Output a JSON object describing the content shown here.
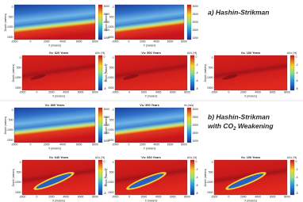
{
  "axis_labels": {
    "y": "Depth (meters)",
    "x": "X (meters)"
  },
  "x_ticks": [
    "-2000",
    "0",
    "2000",
    "4000",
    "6000",
    "8000"
  ],
  "y_ticks": [
    "0",
    "500",
    "1000",
    "1500"
  ],
  "sections": [
    {
      "label": [
        "a) Hashin-Strikman"
      ],
      "rows": [
        {
          "colorbar_ticks": [
            "3000",
            "2500",
            "2000",
            "1500",
            "1000"
          ],
          "panels": [
            {},
            {}
          ]
        },
        {
          "colorbar_ticks": [
            "0",
            "-2",
            "-4",
            "-6",
            "-8"
          ],
          "panels": [
            {
              "title": "Vs: 620 Years",
              "colorbar_label": "ΔVs (%)"
            },
            {
              "title": "Vs: 500 Years",
              "colorbar_label": "ΔVs (%)"
            },
            {
              "title": "Vs: 100 Years",
              "colorbar_label": "ΔVs (%)"
            }
          ]
        }
      ]
    },
    {
      "label": [
        "b) Hashin-Strikman",
        "with CO",
        "2",
        " Weakening"
      ],
      "rows": [
        {
          "colorbar_ticks": [
            "3000",
            "2500",
            "2000",
            "1500",
            "1000"
          ],
          "panels": [
            {
              "title": "Vs: 800 Years"
            },
            {
              "title": "Vs: 500 Years",
              "colorbar_label": "Vs (m/s)"
            }
          ]
        },
        {
          "colorbar_ticks": [
            "0",
            "-2",
            "-4",
            "-6",
            "-8"
          ],
          "panels": [
            {
              "title": "Vs: 640 Years",
              "colorbar_label": "ΔVs (%)"
            },
            {
              "title": "Vs: 660 Years",
              "colorbar_label": "ΔVs (%)"
            },
            {
              "title": "Vs: 100 Years",
              "colorbar_label": "ΔVs (%)"
            }
          ]
        }
      ]
    }
  ]
}
